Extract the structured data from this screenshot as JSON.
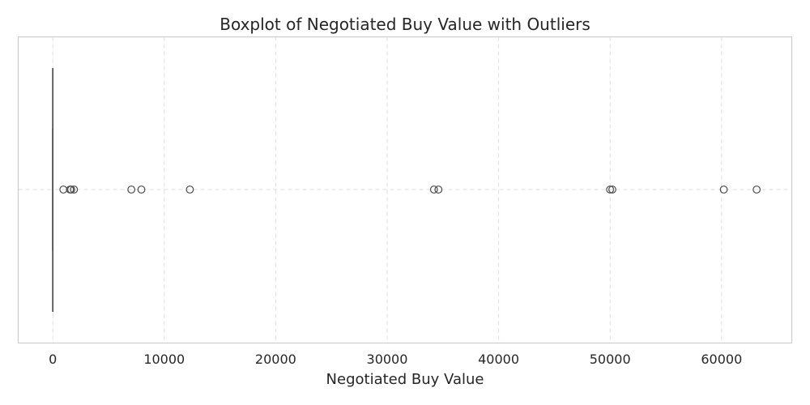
{
  "chart_data": {
    "type": "boxplot",
    "title": "Boxplot of Negotiated Buy Value with Outliers",
    "xlabel": "Negotiated Buy Value",
    "ylabel": "",
    "orientation": "horizontal",
    "xlim": [
      -3100,
      66300
    ],
    "xticks": [
      0,
      10000,
      20000,
      30000,
      40000,
      50000,
      60000
    ],
    "grid": true,
    "box": {
      "whisker_low": 0,
      "q1": 0,
      "median": 0,
      "q3": 0,
      "whisker_high": 0
    },
    "outliers": [
      950,
      1550,
      1650,
      1900,
      7050,
      7950,
      12300,
      34200,
      34600,
      50000,
      50200,
      60200,
      63150
    ],
    "colors": {
      "box_line": "#4a4a4a",
      "grid": "#dedede",
      "spine": "#cccccc",
      "text": "#262626"
    }
  }
}
